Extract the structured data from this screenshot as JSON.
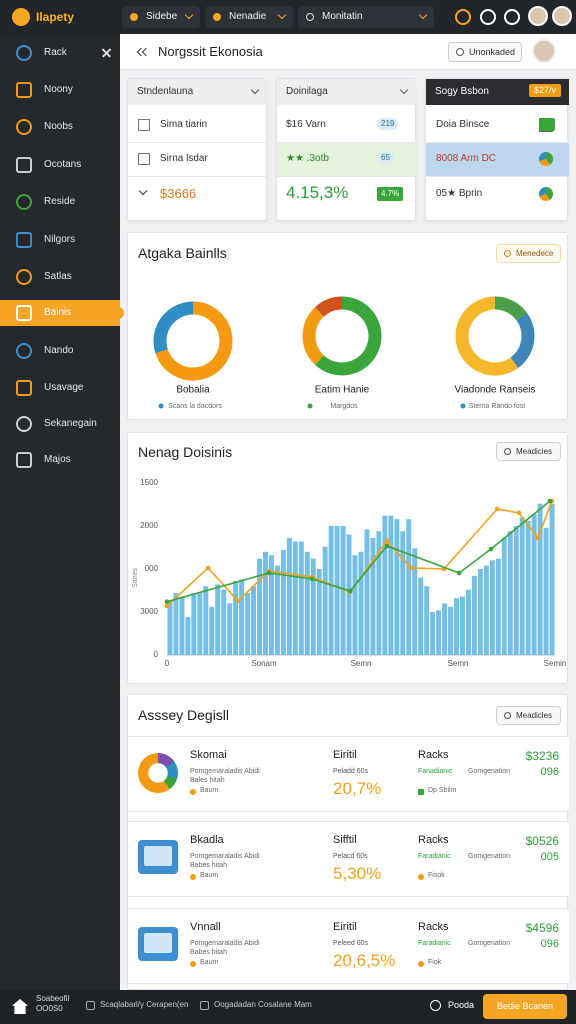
{
  "topbar": {
    "brand": "Ilapety",
    "menus": [
      "Sidebe",
      "Nenadie",
      "Monitatin"
    ]
  },
  "sidebar": {
    "items": [
      "Rack",
      "Noony",
      "Noobs",
      "Ocotans",
      "Reside",
      "Nilgors",
      "Satlas",
      "Bainis",
      "Nando",
      "Usavage",
      "Sekanegain",
      "Majos"
    ],
    "active": 7
  },
  "header": {
    "title": "Norgssit Ekonosia",
    "button": "Unonkaded"
  },
  "cards": [
    {
      "title": "Stndenlauna",
      "rows": [
        "Sima tiarin",
        "Sirna lsdar",
        "$3666"
      ]
    },
    {
      "title": "Doinilaga",
      "highlight": 1,
      "rows": [
        {
          "text": "$16 Varn",
          "badge": "219"
        },
        {
          "text": "★★ .3otb",
          "badge": "65"
        },
        {
          "text": "4.15,3%",
          "badge": "4.7%"
        }
      ]
    },
    {
      "title": "Sogy Bsbon",
      "badge": "$27/v",
      "highlight": 1,
      "rows": [
        "Doia Binsce",
        "8008 Arm DC",
        "05★ Bprin"
      ]
    }
  ],
  "donut_panel": {
    "title": "Atgaka Bainlls",
    "button": "Menedece",
    "donuts": [
      {
        "label": "Bobalia",
        "sublabel": "Scans la dacdors",
        "segments": [
          {
            "color": "#f39a12",
            "value": 70
          },
          {
            "color": "#2f8fc4",
            "value": 30
          }
        ]
      },
      {
        "label": "Eatim Hanie",
        "sublabel": "Margdos",
        "segments": [
          {
            "color": "#3aa53a",
            "value": 62
          },
          {
            "color": "#f39a12",
            "value": 26
          },
          {
            "color": "#d2521c",
            "value": 12
          }
        ]
      },
      {
        "label": "Viadonde Ranseis",
        "sublabel": "Sterna Rando fost",
        "segments": [
          {
            "color": "#4aa04a",
            "value": 15
          },
          {
            "color": "#3f86b8",
            "value": 25
          },
          {
            "color": "#f5b82a",
            "value": 60
          }
        ]
      }
    ]
  },
  "activity_chart": {
    "type": "bar",
    "title": "Nenag Doisinis",
    "button": "Meadicies",
    "y_title": "Sanes",
    "y_labels": [
      "1500",
      "2000",
      "000",
      "3000",
      "0"
    ],
    "x_labels": [
      "0",
      "Sonam",
      "Semn",
      "Semn",
      "Semin"
    ],
    "ylim": [
      0,
      100
    ],
    "xlim": [
      0,
      100
    ],
    "bar_color": "#5cb4e4",
    "bars": [
      31,
      36,
      34,
      22,
      36,
      36,
      40,
      28,
      41,
      38,
      30,
      43,
      44,
      36,
      40,
      56,
      60,
      58,
      52,
      61,
      68,
      66,
      66,
      60,
      56,
      50,
      63,
      75,
      75,
      75,
      70,
      58,
      60,
      73,
      68,
      72,
      81,
      81,
      79,
      72,
      79,
      62,
      45,
      40,
      25,
      26,
      30,
      28,
      33,
      34,
      38,
      46,
      50,
      52,
      55,
      56,
      68,
      72,
      75,
      80,
      78,
      82,
      88,
      74,
      88
    ],
    "lines": [
      {
        "color": "#f0a21a",
        "x": [
          0,
          10.6,
          18.3,
          26.3,
          37.4,
          47.2,
          56.7,
          62.9,
          71.4,
          85.1,
          90.7,
          95.6,
          99.2
        ],
        "values": [
          28.5,
          50.6,
          31.4,
          48.8,
          45.3,
          36.6,
          66.3,
          50.6,
          50,
          84.9,
          82.6,
          68,
          89.5
        ]
      },
      {
        "color": "#3aa53a",
        "x": [
          0,
          26.3,
          37.4,
          47.2,
          56.7,
          75.3,
          83.5,
          98.7
        ],
        "values": [
          31,
          47.7,
          44.2,
          37.2,
          63.4,
          47.7,
          61.6,
          89.5
        ]
      }
    ]
  },
  "recent": {
    "title": "Asssey Degisll",
    "button": "Meadicles",
    "items": [
      {
        "name": "Skomai",
        "desc": [
          "Pomgemaraladis Abidi",
          "Bales hitah"
        ],
        "tag": "Baum",
        "metric_label": "Eiritil",
        "metric_sub": "Peladd 60s",
        "metric": "20,7%",
        "racks": "Racks",
        "racks_desc": [
          "Fanadianic",
          "Gomgenation"
        ],
        "racks_tag": "Dp Sbilm",
        "amount": "$3236",
        "count": "096"
      },
      {
        "name": "Bkadla",
        "desc": [
          "Pomgemaraladis Abidi",
          "Babes hitah"
        ],
        "tag": "Baum",
        "metric_label": "Sifftil",
        "metric_sub": "Pelacd 60s",
        "metric": "5,30%",
        "racks": "Racks",
        "racks_desc": [
          "Faradianic",
          "Gomgenation"
        ],
        "racks_tag": "Fisok",
        "amount": "$0526",
        "count": "005"
      },
      {
        "name": "Vnnall",
        "desc": [
          "Pomgemaraladis Abidi",
          "Babes hitah"
        ],
        "tag": "Baum",
        "metric_label": "Eiritil",
        "metric_sub": "Peleed 60s",
        "metric": "20,6,5%",
        "racks": "Racks",
        "racks_desc": [
          "Faradianic",
          "Gomgenation"
        ],
        "racks_tag": "Fiok",
        "amount": "$4596",
        "count": "096"
      }
    ]
  },
  "bottombar": {
    "user": "Soabeofil",
    "code": "OO0S0",
    "links": [
      "Scaqlabarl/y Cerapen(en",
      "Oogadadan Cosalane Mam"
    ],
    "status": "Pooda",
    "button": "Bedie Bcanen"
  }
}
